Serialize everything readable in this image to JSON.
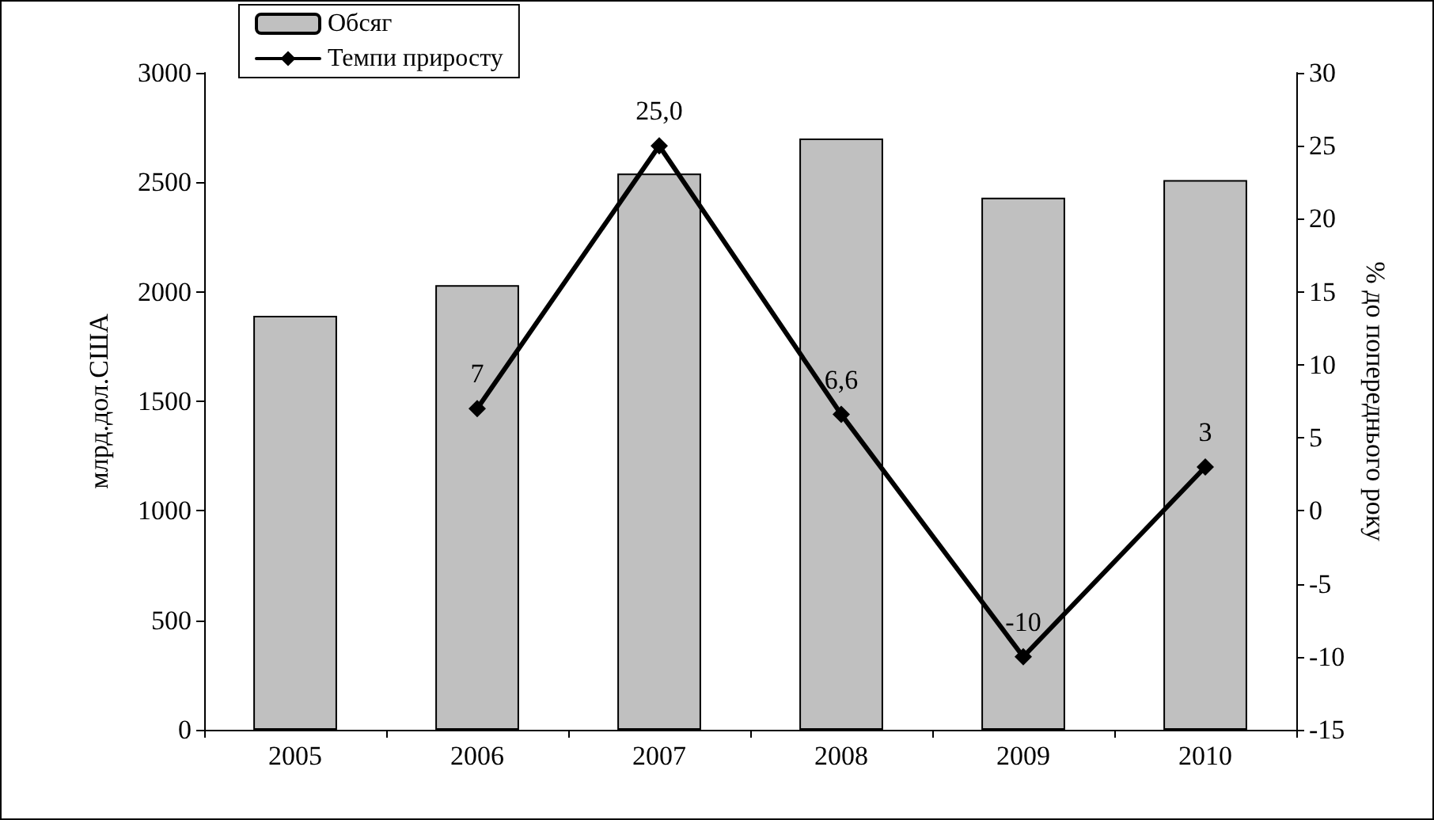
{
  "chart_data": {
    "type": "bar",
    "categories": [
      "2005",
      "2006",
      "2007",
      "2008",
      "2009",
      "2010"
    ],
    "series": [
      {
        "name": "Обсяг",
        "color": "#c0c0c0",
        "values": [
          1890,
          2030,
          2540,
          2700,
          2430,
          2510
        ]
      },
      {
        "name": "Темпи приросту",
        "type": "line",
        "axis": "y2",
        "color": "#000000",
        "marker": "diamond",
        "line_style": "solid",
        "values": [
          null,
          7,
          25.0,
          6.6,
          -10,
          3
        ],
        "value_labels": [
          null,
          "7",
          "25,0",
          "6,6",
          "-10",
          "3"
        ]
      }
    ],
    "ylabel": "млрд.дол.США",
    "y2label": "% до попереднього року",
    "ylim": [
      0,
      3000
    ],
    "yticks": [
      0,
      500,
      1000,
      1500,
      2000,
      2500,
      3000
    ],
    "y2lim": [
      -15,
      30
    ],
    "y2ticks": [
      -15,
      -10,
      -5,
      0,
      5,
      10,
      15,
      20,
      25,
      30
    ],
    "grid": false,
    "legend": "top left"
  }
}
